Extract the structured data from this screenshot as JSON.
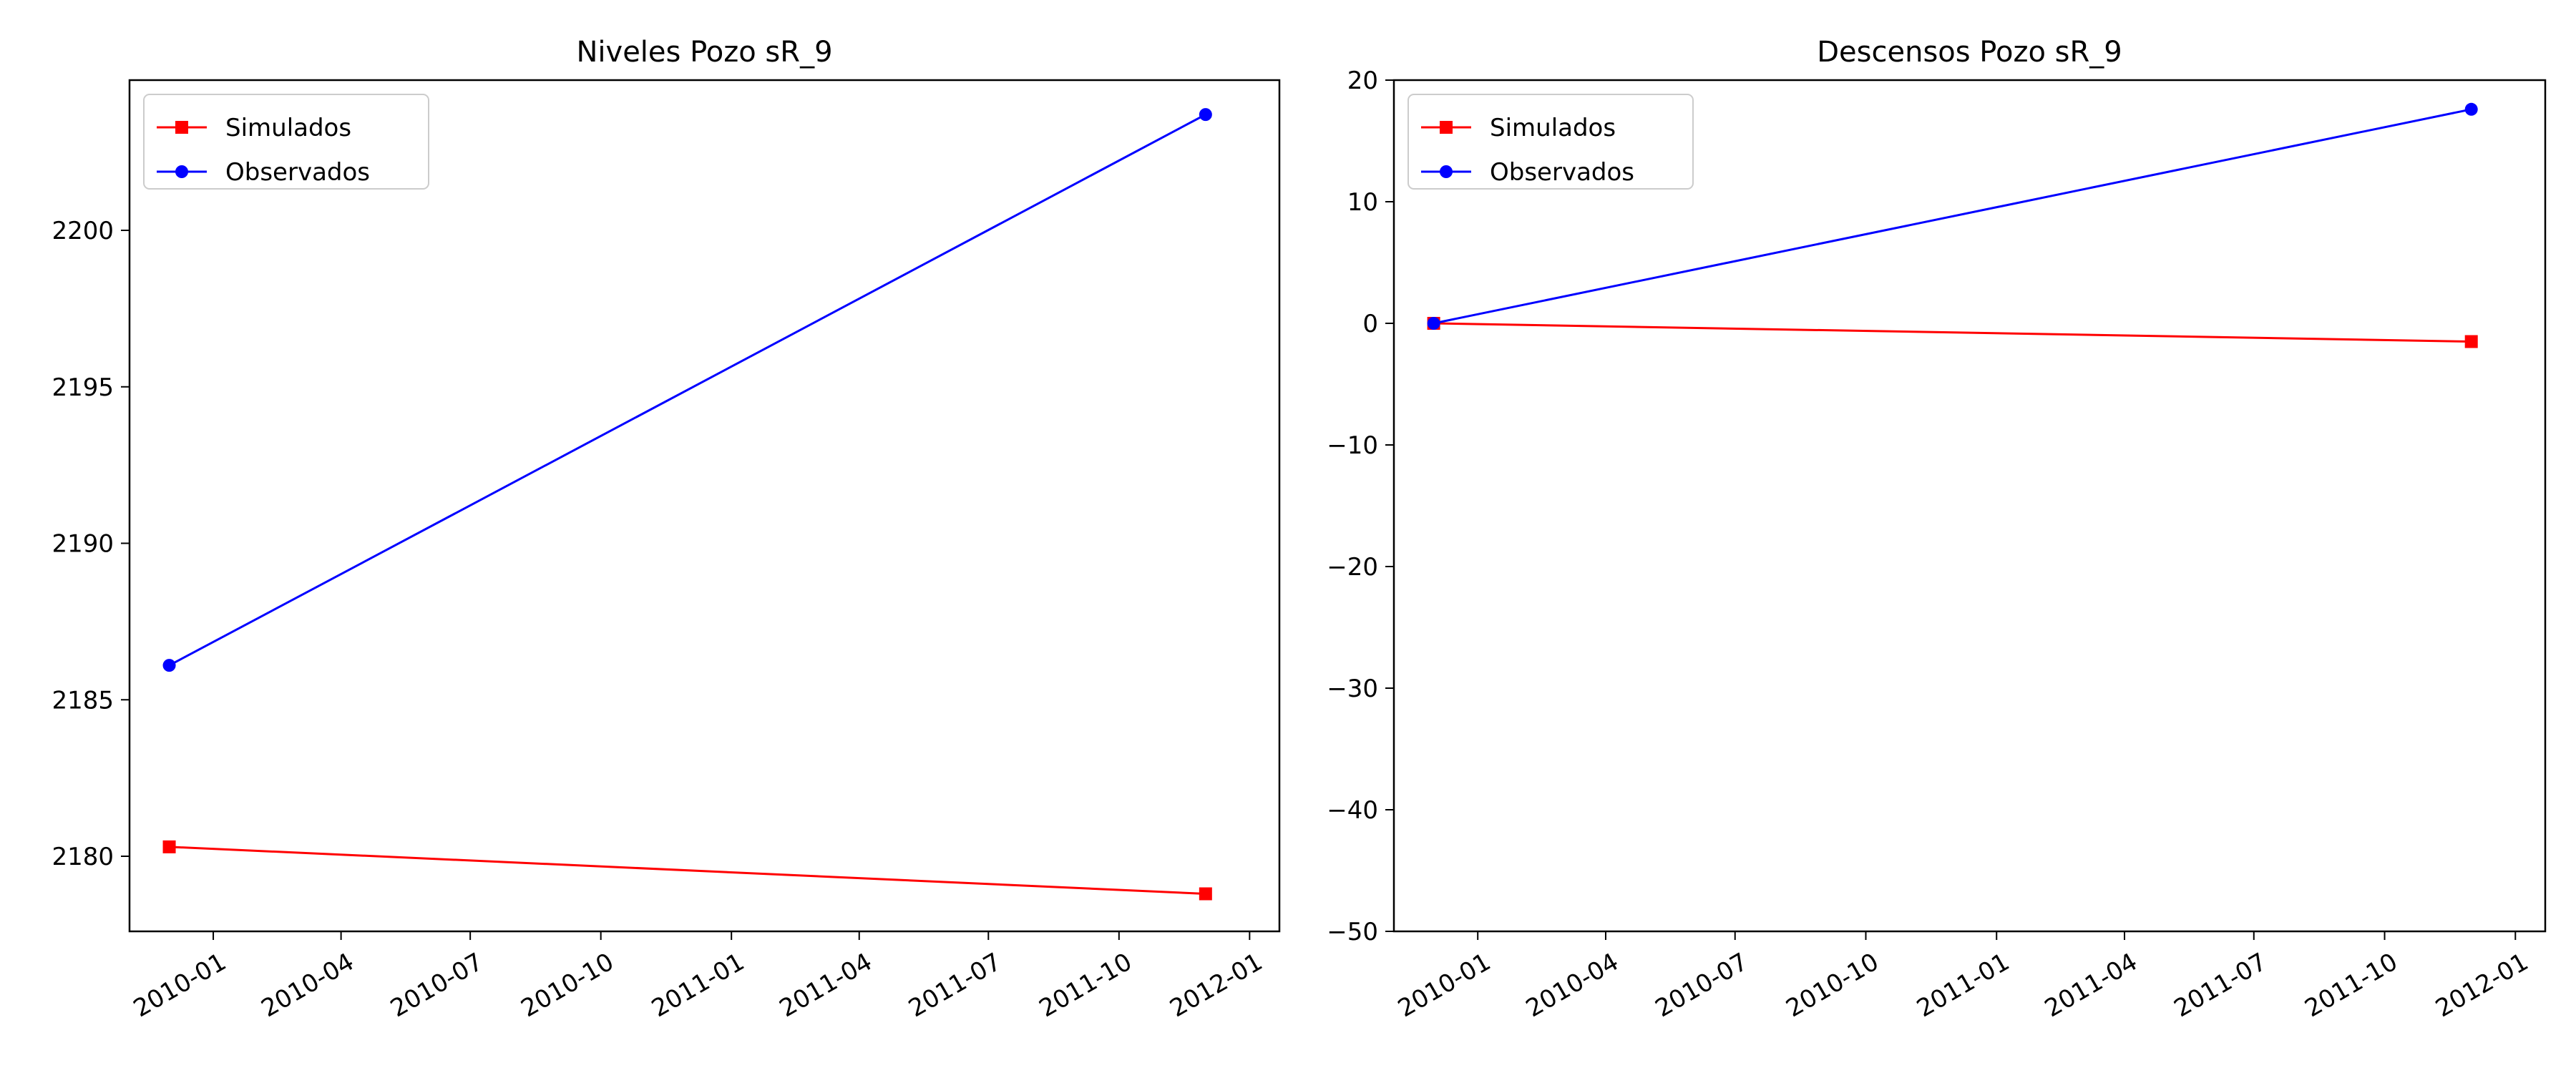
{
  "chart_data": [
    {
      "type": "line",
      "title": "Niveles Pozo sR_9",
      "xlabel": "",
      "ylabel": "",
      "x": [
        "2009-12-01",
        "2011-12-01"
      ],
      "xlim": [
        "2009-11-03",
        "2012-01-22"
      ],
      "ylim": [
        2177.6,
        2204.8
      ],
      "x_ticks": [
        "2010-01",
        "2010-04",
        "2010-07",
        "2010-10",
        "2011-01",
        "2011-04",
        "2011-07",
        "2011-10",
        "2012-01"
      ],
      "y_ticks": [
        2180,
        2185,
        2190,
        2195,
        2200
      ],
      "legend_position": "top-left",
      "grid": false,
      "series": [
        {
          "name": "Simulados",
          "values": [
            2180.3,
            2178.8
          ],
          "color": "#ff0000",
          "marker": "square"
        },
        {
          "name": "Observados",
          "values": [
            2186.1,
            2203.7
          ],
          "color": "#0000ff",
          "marker": "circle"
        }
      ]
    },
    {
      "type": "line",
      "title": "Descensos Pozo sR_9",
      "xlabel": "",
      "ylabel": "",
      "x": [
        "2009-12-01",
        "2011-12-01"
      ],
      "xlim": [
        "2009-11-03",
        "2012-01-22"
      ],
      "ylim": [
        -50,
        20
      ],
      "x_ticks": [
        "2010-01",
        "2010-04",
        "2010-07",
        "2010-10",
        "2011-01",
        "2011-04",
        "2011-07",
        "2011-10",
        "2012-01"
      ],
      "y_ticks": [
        -50,
        -40,
        -30,
        -20,
        -10,
        0,
        10,
        20
      ],
      "legend_position": "top-left",
      "grid": false,
      "series": [
        {
          "name": "Simulados",
          "values": [
            0,
            -1.5
          ],
          "color": "#ff0000",
          "marker": "square"
        },
        {
          "name": "Observados",
          "values": [
            0,
            17.6
          ],
          "color": "#0000ff",
          "marker": "circle"
        }
      ]
    }
  ]
}
